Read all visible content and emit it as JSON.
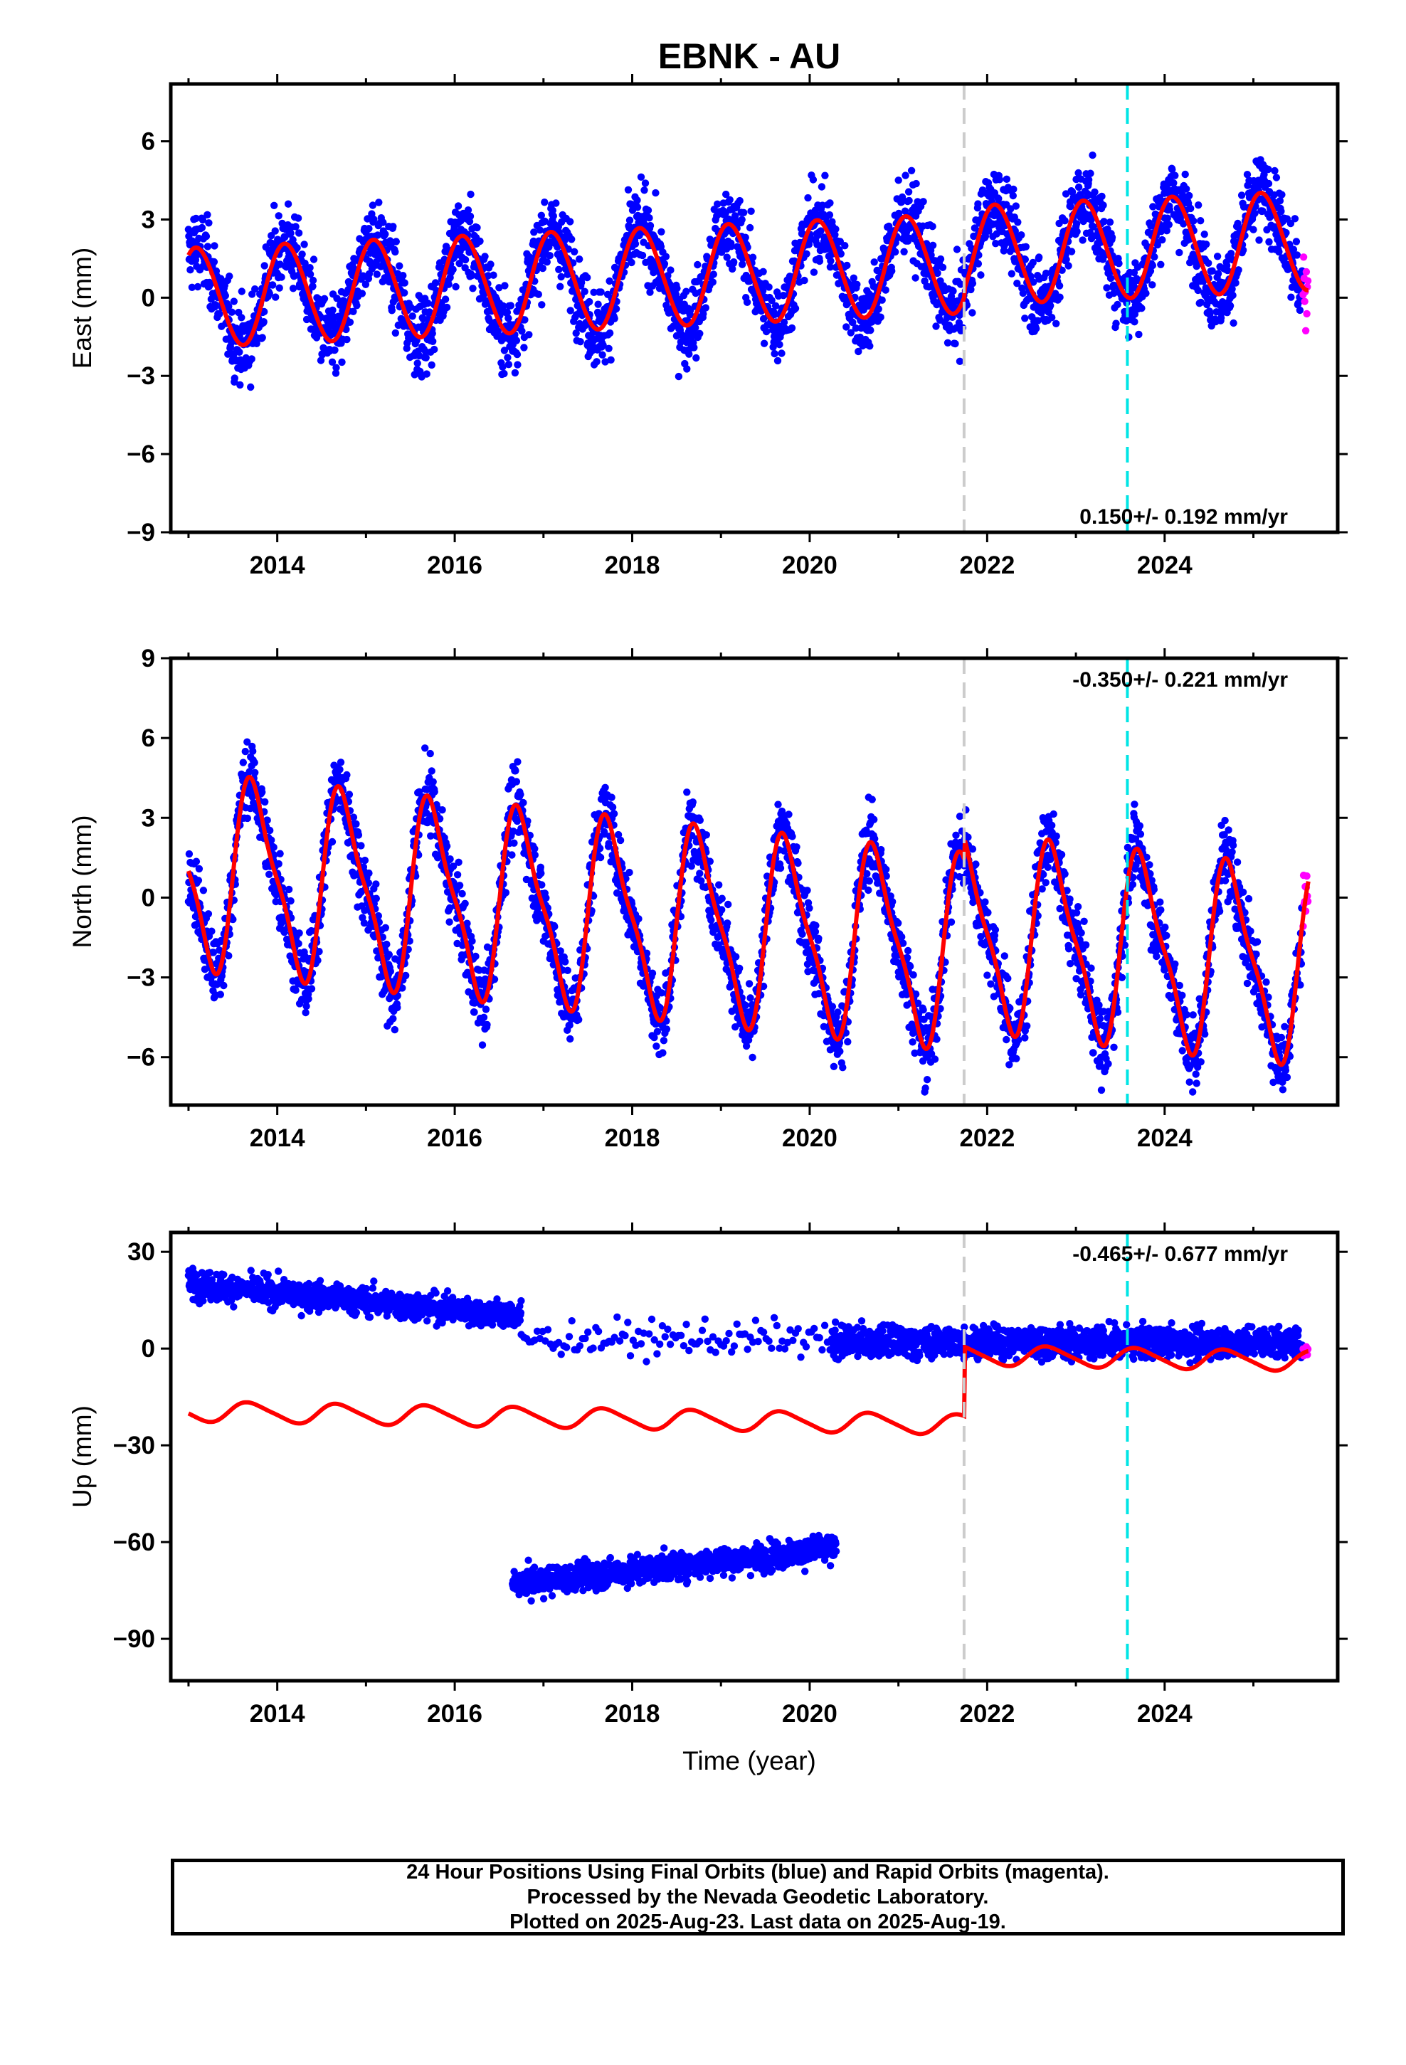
{
  "title": "EBNK - AU",
  "x_axis_label": "Time (year)",
  "caption": [
    "24 Hour Positions Using Final Orbits (blue) and Rapid Orbits (magenta).",
    "Processed by the Nevada Geodetic Laboratory.",
    "Plotted on 2025-Aug-23. Last data on 2025-Aug-19."
  ],
  "colors": {
    "final_orbits": "#0000ff",
    "rapid_orbits": "#ff00ff",
    "model_fit": "#ff0000",
    "equipment_change": "#cccccc",
    "other_event": "#00e5e5"
  },
  "chart_data": [
    {
      "type": "scatter",
      "component": "East",
      "ylabel": "East (mm)",
      "xlim": [
        2012.8,
        2025.95
      ],
      "ylim": [
        -9,
        8.2
      ],
      "xticks": [
        2014,
        2016,
        2018,
        2020,
        2022,
        2024
      ],
      "yticks": [
        -9,
        -6,
        -3,
        0,
        3,
        6
      ],
      "rate_label": "0.150+/- 0.192 mm/yr",
      "rate_position": "bottom-right",
      "model": {
        "offset": 0.0,
        "trend_mm_per_yr": 0.15,
        "step_at": 2021.74,
        "step_mm": 0.3,
        "annual_amp": 1.9,
        "annual_phase_yr": 0.85,
        "semiannual_amp": 0.1
      },
      "data_stats": {
        "start": 2013.0,
        "end": 2025.55,
        "scatter_sd": 1.4
      },
      "vertical_lines": [
        {
          "x": 2021.74,
          "kind": "equipment_change"
        },
        {
          "x": 2023.58,
          "kind": "other_event"
        }
      ]
    },
    {
      "type": "scatter",
      "component": "North",
      "ylabel": "North (mm)",
      "xlim": [
        2012.8,
        2025.95
      ],
      "ylim": [
        -7.8,
        9.0
      ],
      "xticks": [
        2014,
        2016,
        2018,
        2020,
        2022,
        2024
      ],
      "yticks": [
        -6,
        -3,
        0,
        3,
        6,
        9
      ],
      "rate_label": "-0.350+/- 0.221 mm/yr",
      "rate_position": "top-right",
      "model": {
        "offset": 1.0,
        "trend_mm_per_yr": -0.35,
        "step_at": 2021.74,
        "step_mm": 0.8,
        "annual_amp": 3.4,
        "annual_phase_yr": 0.5,
        "semiannual_amp": 0.9
      },
      "data_stats": {
        "start": 2013.0,
        "end": 2025.55,
        "scatter_sd": 1.3
      },
      "vertical_lines": [
        {
          "x": 2021.74,
          "kind": "equipment_change"
        },
        {
          "x": 2023.58,
          "kind": "other_event"
        }
      ]
    },
    {
      "type": "scatter",
      "component": "Up",
      "ylabel": "Up (mm)",
      "xlim": [
        2012.8,
        2025.95
      ],
      "ylim": [
        -103,
        36
      ],
      "xticks": [
        2014,
        2016,
        2018,
        2020,
        2022,
        2024
      ],
      "yticks": [
        -90,
        -60,
        -30,
        0,
        30
      ],
      "rate_label": "-0.465+/- 0.677 mm/yr",
      "rate_position": "top-right",
      "model": {
        "offset": -19.5,
        "trend_mm_per_yr": -0.465,
        "step_at": 2021.74,
        "step_mm": 21.5,
        "annual_amp": 3.0,
        "annual_phase_yr": 0.45,
        "semiannual_amp": 0.5
      },
      "data_groups": [
        {
          "start": 2013.0,
          "end": 2016.75,
          "level_start": 20,
          "level_end": 10,
          "scatter_sd": 4
        },
        {
          "start": 2016.75,
          "end": 2020.3,
          "level_start": 3,
          "level_end": 3,
          "scatter_sd": 5,
          "sparse": true
        },
        {
          "start": 2016.65,
          "end": 2020.3,
          "level_start": -73,
          "level_end": -62,
          "scatter_sd": 4
        },
        {
          "start": 2020.25,
          "end": 2025.55,
          "level_start": 2,
          "level_end": 2,
          "scatter_sd": 4.5
        }
      ],
      "vertical_lines": [
        {
          "x": 2021.74,
          "kind": "equipment_change"
        },
        {
          "x": 2023.58,
          "kind": "other_event"
        }
      ]
    }
  ]
}
